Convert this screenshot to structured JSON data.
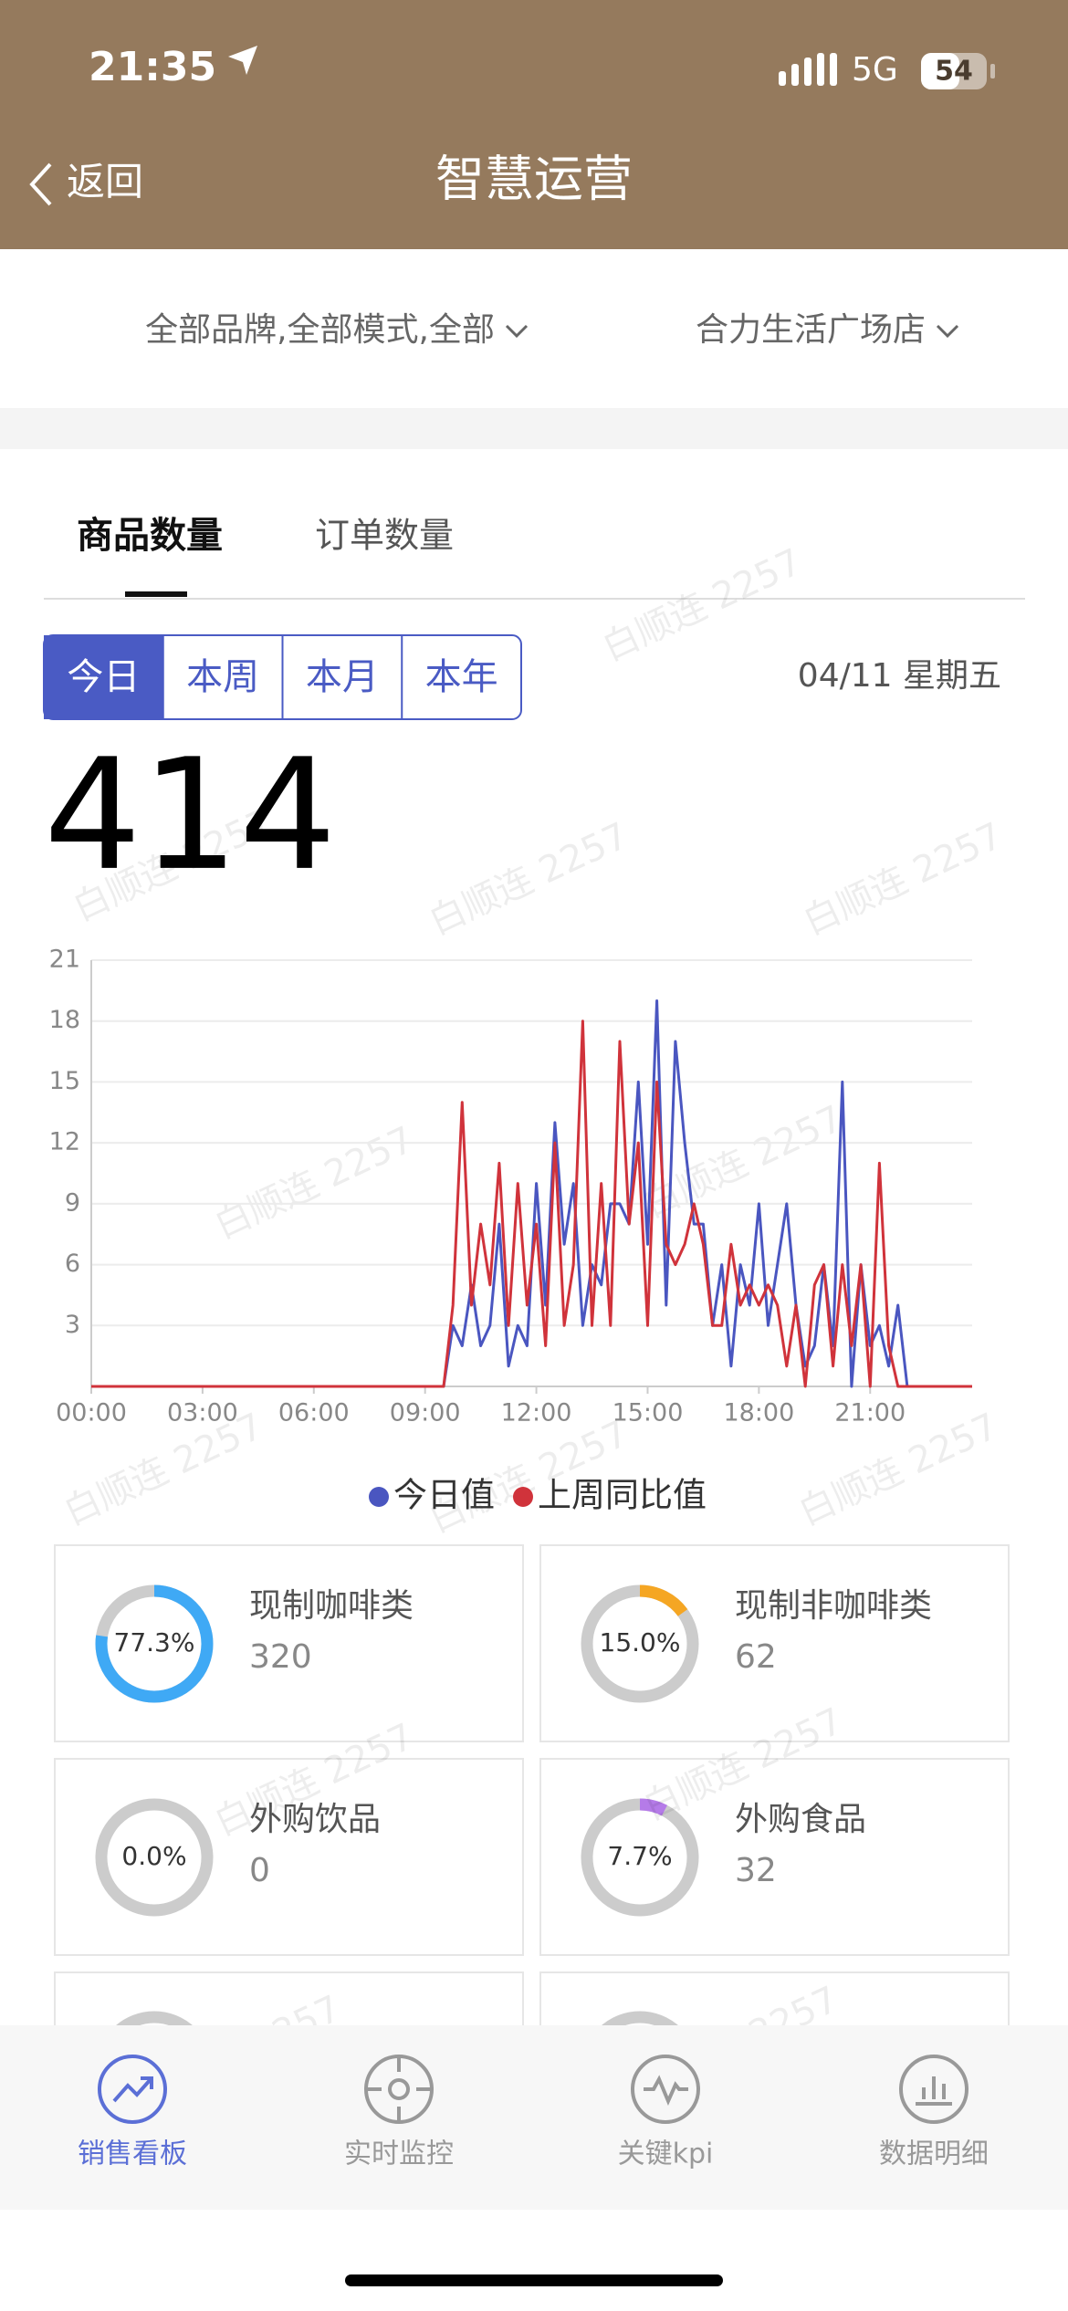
{
  "status_bar": {
    "time": "21:35",
    "network": "5G",
    "battery": 54
  },
  "nav": {
    "back": "返回",
    "title": "智慧运营"
  },
  "filters": [
    "全部品牌,全部模式,全部",
    "合力生活广场店"
  ],
  "tabs": [
    "商品数量",
    "订单数量"
  ],
  "periods": [
    "今日",
    "本周",
    "本月",
    "本年"
  ],
  "date": "04/11 星期五",
  "total": 414,
  "watermark": "白顺连 2257",
  "chart_data": {
    "type": "line",
    "x": [
      0,
      0.25,
      0.5,
      0.75,
      1,
      1.25,
      1.5,
      1.75,
      2,
      2.25,
      2.5,
      2.75,
      3,
      3.25,
      3.5,
      3.75,
      4,
      4.25,
      4.5,
      4.75,
      5,
      5.25,
      5.5,
      5.75,
      6,
      6.25,
      6.5,
      6.75,
      7,
      7.25,
      7.5,
      7.75,
      8,
      8.25,
      8.5,
      8.75,
      9,
      9.25,
      9.5,
      9.75,
      10,
      10.25,
      10.5,
      10.75,
      11,
      11.25,
      11.5,
      11.75,
      12,
      12.25,
      12.5,
      12.75,
      13,
      13.25,
      13.5,
      13.75,
      14,
      14.25,
      14.5,
      14.75,
      15,
      15.25,
      15.5,
      15.75,
      16,
      16.25,
      16.5,
      16.75,
      17,
      17.25,
      17.5,
      17.75,
      18,
      18.25,
      18.5,
      18.75,
      19,
      19.25,
      19.5,
      19.75,
      20,
      20.25,
      20.5,
      20.75,
      21,
      21.25,
      21.5,
      21.75,
      22,
      22.25,
      22.5,
      22.75,
      23,
      23.25,
      23.5,
      23.75
    ],
    "xlim": [
      0,
      23.75
    ],
    "xticks": [
      {
        "value": 0,
        "label": "00:00"
      },
      {
        "value": 3,
        "label": "03:00"
      },
      {
        "value": 6,
        "label": "06:00"
      },
      {
        "value": 9,
        "label": "09:00"
      },
      {
        "value": 12,
        "label": "12:00"
      },
      {
        "value": 15,
        "label": "15:00"
      },
      {
        "value": 18,
        "label": "18:00"
      },
      {
        "value": 21,
        "label": "21:00"
      }
    ],
    "ylim": [
      0,
      21
    ],
    "yticks": [
      3,
      6,
      9,
      12,
      15,
      18,
      21
    ],
    "grid": true,
    "series": [
      {
        "name": "今日值",
        "color": "#4a56c0",
        "values": [
          0,
          0,
          0,
          0,
          0,
          0,
          0,
          0,
          0,
          0,
          0,
          0,
          0,
          0,
          0,
          0,
          0,
          0,
          0,
          0,
          0,
          0,
          0,
          0,
          0,
          0,
          0,
          0,
          0,
          0,
          0,
          0,
          0,
          0,
          0,
          0,
          0,
          0,
          0,
          3,
          2,
          5,
          2,
          3,
          8,
          1,
          3,
          2,
          10,
          4,
          13,
          7,
          10,
          3,
          6,
          5,
          9,
          9,
          8,
          15,
          7,
          19,
          4,
          17,
          12,
          8,
          8,
          3,
          6,
          1,
          6,
          4,
          9,
          3,
          6,
          9,
          4,
          1,
          2,
          6,
          2,
          15,
          0,
          6,
          2,
          3,
          1,
          4,
          0,
          0,
          0,
          0,
          0,
          0,
          0,
          0
        ]
      },
      {
        "name": "上周同比值",
        "color": "#d0333b",
        "values": [
          0,
          0,
          0,
          0,
          0,
          0,
          0,
          0,
          0,
          0,
          0,
          0,
          0,
          0,
          0,
          0,
          0,
          0,
          0,
          0,
          0,
          0,
          0,
          0,
          0,
          0,
          0,
          0,
          0,
          0,
          0,
          0,
          0,
          0,
          0,
          0,
          0,
          0,
          0,
          4,
          14,
          4,
          8,
          5,
          11,
          3,
          10,
          4,
          8,
          2,
          12,
          3,
          6,
          18,
          3,
          10,
          3,
          17,
          8,
          12,
          3,
          15,
          7,
          6,
          7,
          9,
          7,
          3,
          3,
          7,
          4,
          5,
          4,
          5,
          4,
          1,
          4,
          0,
          5,
          6,
          1,
          6,
          2,
          6,
          0,
          11,
          2,
          0,
          0,
          0,
          0,
          0,
          0,
          0,
          0,
          0
        ]
      }
    ]
  },
  "cards": [
    {
      "name": "现制咖啡类",
      "percent": 77.3,
      "percent_label": "77.3%",
      "count": 320,
      "color": "#3fa9f5"
    },
    {
      "name": "现制非咖啡类",
      "percent": 15.0,
      "percent_label": "15.0%",
      "count": 62,
      "color": "#f5a623"
    },
    {
      "name": "外购饮品",
      "percent": 0,
      "percent_label": "0.0%",
      "count": 0
    },
    {
      "name": "外购食品",
      "percent": 7.7,
      "percent_label": "7.7%",
      "count": 32,
      "color": "#b57be8"
    }
  ],
  "tab_bar": [
    "销售看板",
    "实时监控",
    "关键kpi",
    "数据明细"
  ]
}
